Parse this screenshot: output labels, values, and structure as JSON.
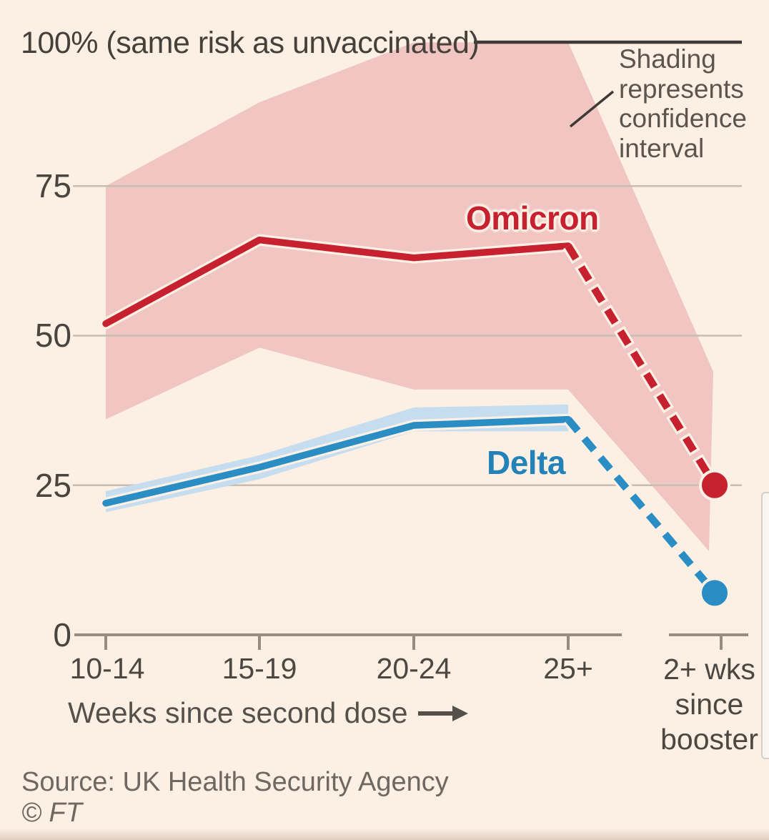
{
  "title": "100% (same risk as unvaccinated)",
  "annotation": {
    "lines": [
      "Shading",
      "represents",
      "confidence",
      "interval"
    ],
    "text": "Shading represents confidence interval"
  },
  "series_labels": {
    "omicron": "Omicron",
    "delta": "Delta"
  },
  "y_axis": {
    "ticks": [
      "75",
      "50",
      "25",
      "0"
    ]
  },
  "x_axis": {
    "tick_labels": [
      "10-14",
      "15-19",
      "20-24",
      "25+"
    ],
    "booster_label_lines": [
      "2+ wks",
      "since",
      "booster"
    ],
    "axis_label": "Weeks since second dose",
    "arrow": "→"
  },
  "source": "Source: UK Health Security Agency",
  "credit": "© FT",
  "colors": {
    "background": "#fcf0e4",
    "omicron_red": "#c7202f",
    "delta_blue": "#2a8dc4",
    "delta_label_blue": "#2382b8",
    "omicron_ci_pink": "#f1c5c2",
    "delta_ci_blue": "#c5ddee",
    "gridline": "#c7bdb1",
    "top_rule": "#3f3a36",
    "axis": "#968d81",
    "halo": "#fdf1e6"
  },
  "chart_data": {
    "type": "line",
    "title": "Risk of symptomatic Covid relative to unvaccinated (%)",
    "categories": [
      "10-14",
      "15-19",
      "20-24",
      "25+",
      "2+ wks since booster"
    ],
    "xlabel": "Weeks since second dose",
    "ylabel": "100% (same risk as unvaccinated)",
    "ylim": [
      0,
      100
    ],
    "y_ticks": [
      0,
      25,
      50,
      75
    ],
    "grid": true,
    "legend_position": "inline-labels",
    "series": [
      {
        "name": "Omicron",
        "values": [
          52,
          66,
          63,
          65,
          25
        ],
        "ci_lower": [
          36,
          48,
          41,
          41,
          14
        ],
        "ci_upper": [
          75,
          89,
          99,
          100,
          44
        ],
        "line_style": "solid then dashed to booster point",
        "dashed_from_index": 3,
        "endpoint_marker": "dot"
      },
      {
        "name": "Delta",
        "values": [
          22,
          28,
          35,
          36,
          7
        ],
        "ci_lower": [
          20.5,
          26,
          34,
          34,
          null
        ],
        "ci_upper": [
          24,
          30,
          38,
          38.5,
          null
        ],
        "line_style": "solid then dashed to booster point",
        "dashed_from_index": 3,
        "endpoint_marker": "dot"
      }
    ],
    "annotations": [
      "Shading represents confidence interval"
    ],
    "source": "UK Health Security Agency"
  }
}
